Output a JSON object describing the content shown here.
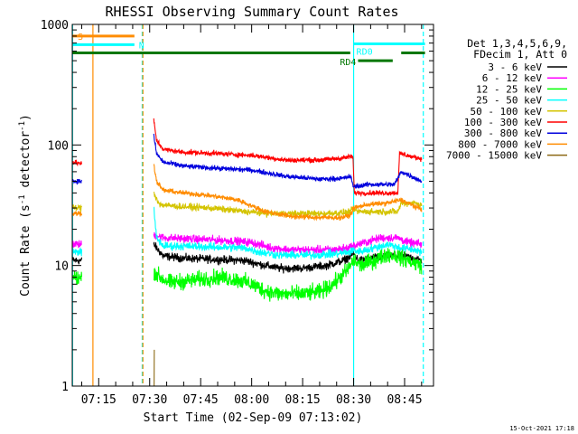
{
  "chart_data": {
    "type": "line",
    "title": "RHESSI Observing Summary Count Rates",
    "xlabel": "Start Time (02-Sep-09 07:13:02)",
    "ylabel_main": "Count Rate (s",
    "ylabel_sup1": "-1",
    "ylabel_mid": " detector",
    "ylabel_sup2": "-1",
    "ylabel_end": ")",
    "yscale": "log",
    "ylim": [
      1,
      1000
    ],
    "xlim_minutes": [
      7.2167,
      113.5
    ],
    "x_ticks": [
      {
        "minute": 15,
        "label": "07:15"
      },
      {
        "minute": 30,
        "label": "07:30"
      },
      {
        "minute": 45,
        "label": "07:45"
      },
      {
        "minute": 60,
        "label": "08:00"
      },
      {
        "minute": 75,
        "label": "08:15"
      },
      {
        "minute": 90,
        "label": "08:30"
      },
      {
        "minute": 105,
        "label": "08:45"
      }
    ],
    "y_ticks": [
      {
        "value": 1,
        "label": "1"
      },
      {
        "value": 10,
        "label": "10"
      },
      {
        "value": 100,
        "label": "100"
      },
      {
        "value": 1000,
        "label": "1000"
      }
    ],
    "legend": {
      "placement": "right",
      "header": [
        "Det 1,3,4,5,6,9,",
        "FDecim 1, Att 0"
      ],
      "entries": [
        {
          "label": "3 - 6 keV",
          "color": "#000000"
        },
        {
          "label": "6 - 12 keV",
          "color": "#ff00ff"
        },
        {
          "label": "12 - 25 keV",
          "color": "#00ff00"
        },
        {
          "label": "25 - 50 keV",
          "color": "#00ffff"
        },
        {
          "label": "50 - 100 keV",
          "color": "#d4c400"
        },
        {
          "label": "100 - 300 keV",
          "color": "#ff0000"
        },
        {
          "label": "300 - 800 keV",
          "color": "#0000dd"
        },
        {
          "label": "800 - 7000 keV",
          "color": "#ff8c00"
        },
        {
          "label": "7000 - 15000 keV",
          "color": "#8b6914"
        }
      ]
    },
    "series": [
      {
        "name": "3 - 6 keV",
        "color": "#000000",
        "noise": 0.05,
        "segments": [
          [
            [
              7.4,
              11
            ],
            [
              10,
              11
            ]
          ],
          [
            [
              31.2,
              15
            ],
            [
              32,
              14
            ],
            [
              34,
              12
            ],
            [
              40,
              11.5
            ],
            [
              50,
              11.2
            ],
            [
              58,
              11
            ],
            [
              62,
              10.3
            ],
            [
              68,
              9.5
            ],
            [
              75,
              9.5
            ],
            [
              82,
              10
            ],
            [
              87,
              11
            ],
            [
              90,
              12.5
            ],
            [
              91.5,
              11
            ],
            [
              95,
              11.5
            ],
            [
              100,
              12
            ],
            [
              105,
              12
            ],
            [
              108,
              11.5
            ],
            [
              110,
              11
            ]
          ]
        ]
      },
      {
        "name": "6 - 12 keV",
        "color": "#ff00ff",
        "noise": 0.05,
        "segments": [
          [
            [
              7.4,
              15
            ],
            [
              10,
              15
            ]
          ],
          [
            [
              31.2,
              18
            ],
            [
              34,
              17
            ],
            [
              45,
              16.5
            ],
            [
              55,
              16
            ],
            [
              60,
              15.5
            ],
            [
              66,
              14
            ],
            [
              72,
              13.5
            ],
            [
              78,
              13.5
            ],
            [
              84,
              13.5
            ],
            [
              88,
              14
            ],
            [
              90,
              14.5
            ],
            [
              91.5,
              15
            ],
            [
              98,
              17
            ],
            [
              103,
              17
            ],
            [
              106,
              15.5
            ],
            [
              110,
              15
            ]
          ]
        ]
      },
      {
        "name": "12 - 25 keV",
        "color": "#00ff00",
        "noise": 0.1,
        "segments": [
          [
            [
              7.4,
              8
            ],
            [
              10,
              7.8
            ]
          ],
          [
            [
              31.2,
              9
            ],
            [
              33,
              8
            ],
            [
              36,
              7.2
            ],
            [
              42,
              7.5
            ],
            [
              50,
              8
            ],
            [
              56,
              7.6
            ],
            [
              60,
              7
            ],
            [
              64,
              6.2
            ],
            [
              68,
              5.8
            ],
            [
              74,
              5.8
            ],
            [
              80,
              6
            ],
            [
              84,
              7
            ],
            [
              88,
              9
            ],
            [
              90,
              11
            ],
            [
              92,
              10
            ],
            [
              96,
              11
            ],
            [
              100,
              12.5
            ],
            [
              103,
              12
            ],
            [
              106,
              11
            ],
            [
              110,
              10
            ]
          ]
        ]
      },
      {
        "name": "25 - 50 keV",
        "color": "#00ffff",
        "noise": 0.05,
        "segments": [
          [
            [
              7.4,
              13
            ],
            [
              10,
              13
            ]
          ],
          [
            [
              31.2,
              30
            ],
            [
              32,
              17
            ],
            [
              34,
              14.5
            ],
            [
              40,
              14.5
            ],
            [
              50,
              14.2
            ],
            [
              58,
              14
            ],
            [
              62,
              13
            ],
            [
              68,
              12.2
            ],
            [
              78,
              12.2
            ],
            [
              85,
              12.5
            ],
            [
              89,
              13
            ],
            [
              90,
              13.5
            ],
            [
              91.5,
              13
            ],
            [
              96,
              14
            ],
            [
              100,
              15
            ],
            [
              104,
              14
            ],
            [
              108,
              13.5
            ],
            [
              110,
              13
            ]
          ]
        ]
      },
      {
        "name": "50 - 100 keV",
        "color": "#d4c400",
        "noise": 0.04,
        "segments": [
          [
            [
              7.4,
              30
            ],
            [
              10,
              30
            ]
          ],
          [
            [
              31.2,
              40
            ],
            [
              33,
              32
            ],
            [
              38,
              31
            ],
            [
              48,
              30
            ],
            [
              58,
              28
            ],
            [
              66,
              27
            ],
            [
              80,
              27
            ],
            [
              88,
              27.5
            ],
            [
              90,
              29
            ],
            [
              91.5,
              28
            ],
            [
              100,
              28
            ],
            [
              103,
              28
            ],
            [
              104,
              33
            ],
            [
              108,
              33
            ],
            [
              110,
              32
            ]
          ]
        ]
      },
      {
        "name": "100 - 300 keV",
        "color": "#ff0000",
        "noise": 0.03,
        "segments": [
          [
            [
              7.4,
              72
            ],
            [
              10,
              70
            ]
          ],
          [
            [
              31.2,
              160
            ],
            [
              32,
              110
            ],
            [
              34,
              92
            ],
            [
              40,
              87
            ],
            [
              50,
              85
            ],
            [
              60,
              82
            ],
            [
              70,
              75
            ],
            [
              80,
              75
            ],
            [
              87,
              78
            ],
            [
              89,
              80
            ],
            [
              89.8,
              80
            ],
            [
              90.2,
              40
            ],
            [
              94,
              40
            ],
            [
              98,
              40
            ],
            [
              103,
              40
            ],
            [
              103.5,
              85
            ],
            [
              107,
              80
            ],
            [
              110,
              77
            ]
          ]
        ]
      },
      {
        "name": "300 - 800 keV",
        "color": "#0000dd",
        "noise": 0.03,
        "segments": [
          [
            [
              7.4,
              50
            ],
            [
              10,
              50
            ]
          ],
          [
            [
              31.2,
              120
            ],
            [
              32,
              85
            ],
            [
              34,
              72
            ],
            [
              40,
              67
            ],
            [
              50,
              64
            ],
            [
              60,
              62
            ],
            [
              70,
              55
            ],
            [
              80,
              52
            ],
            [
              87,
              53
            ],
            [
              89,
              55
            ],
            [
              90,
              45
            ],
            [
              94,
              47
            ],
            [
              98,
              47
            ],
            [
              102,
              47
            ],
            [
              104,
              60
            ],
            [
              107,
              55
            ],
            [
              110,
              50
            ]
          ]
        ]
      },
      {
        "name": "800 - 7000 keV",
        "color": "#ff8c00",
        "noise": 0.03,
        "segments": [
          [
            [
              7.4,
              27
            ],
            [
              10,
              27
            ]
          ],
          [
            [
              31.2,
              70
            ],
            [
              32,
              50
            ],
            [
              34,
              42
            ],
            [
              40,
              40
            ],
            [
              48,
              38
            ],
            [
              56,
              35
            ],
            [
              64,
              28
            ],
            [
              72,
              25.5
            ],
            [
              80,
              25
            ],
            [
              86,
              25
            ],
            [
              89,
              26
            ],
            [
              90,
              30
            ],
            [
              94,
              32
            ],
            [
              100,
              33
            ],
            [
              104,
              35
            ],
            [
              108,
              31
            ],
            [
              110,
              29
            ]
          ]
        ]
      },
      {
        "name": "7000 - 15000 keV",
        "color": "#8b6914",
        "noise": 0.0,
        "segments": [
          [
            [
              31.3,
              1
            ],
            [
              31.35,
              2
            ]
          ]
        ]
      }
    ],
    "state_bars": [
      {
        "label": "S",
        "color": "#ff8c00",
        "start": 7.22,
        "end": 25.5,
        "value": 800
      },
      {
        "label": "N",
        "color": "#00ffff",
        "start": 7.22,
        "end": 25.5,
        "value": 680
      },
      {
        "label": "",
        "color": "#007700",
        "start": 7.22,
        "end": 89.0,
        "value": 580
      },
      {
        "label": "RD0",
        "color": "#00ffff",
        "start": 90.0,
        "end": 111.0,
        "value": 690
      },
      {
        "label": "RD4",
        "color": "#007700",
        "start": 91.3,
        "end": 101.5,
        "value": 500
      },
      {
        "label": "",
        "color": "#007700",
        "start": 104.0,
        "end": 111.0,
        "value": 580
      }
    ],
    "vertical_lines": [
      {
        "minute": 7.3,
        "color": "#00ffff",
        "style": "solid"
      },
      {
        "minute": 13.3,
        "color": "#ff8c00",
        "style": "solid"
      },
      {
        "minute": 27.8,
        "color": "#00ffff",
        "style": "dashed"
      },
      {
        "minute": 28.0,
        "color": "#ff8c00",
        "style": "dashed"
      },
      {
        "minute": 90.0,
        "color": "#00ffff",
        "style": "solid"
      },
      {
        "minute": 110.5,
        "color": "#00ffff",
        "style": "dashed"
      }
    ],
    "footer_timestamp": "15-Oct-2021 17:18"
  }
}
